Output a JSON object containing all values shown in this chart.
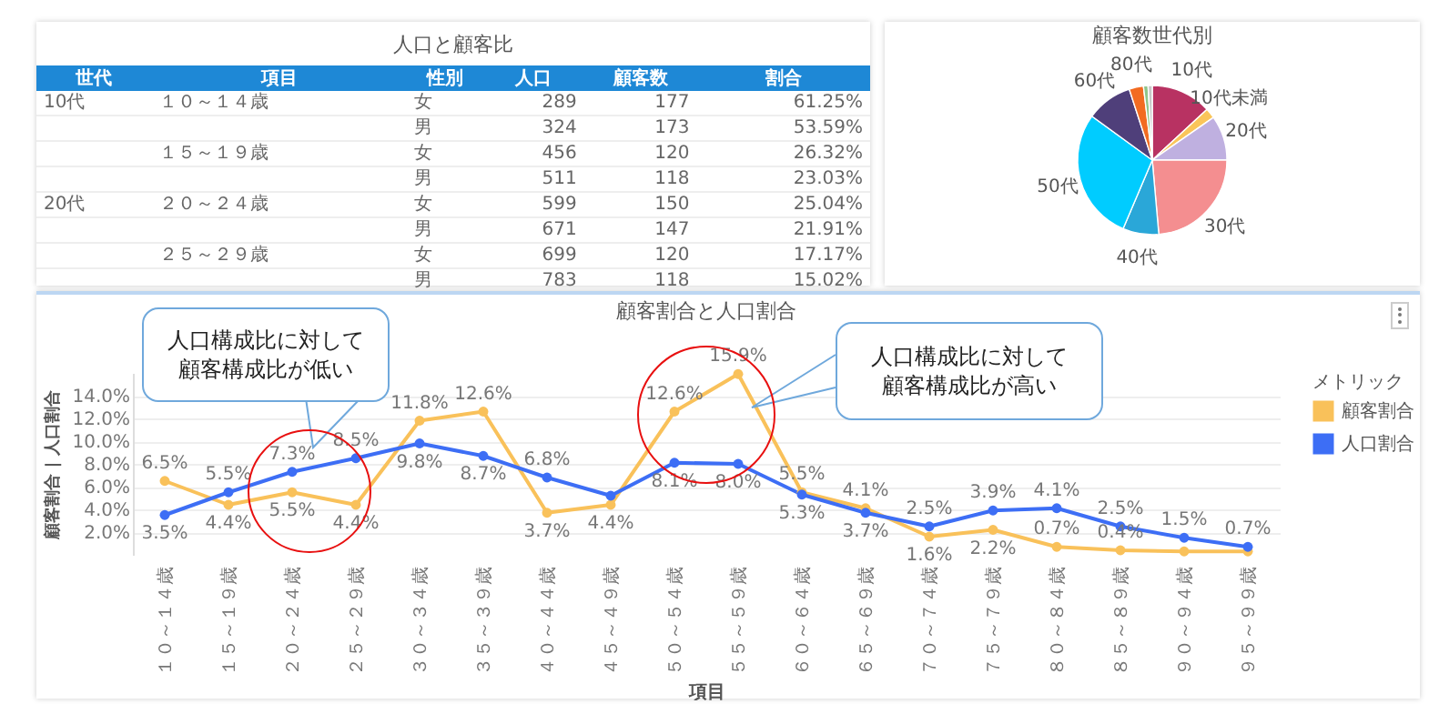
{
  "chart_data": [
    {
      "type": "other",
      "title": "人口と顧客比",
      "categories": [
        "世代",
        "項目",
        "性別",
        "人口",
        "顧客数",
        "割合"
      ],
      "cell_labels": [
        [
          "10代",
          "１０～１４歳",
          "女",
          "289",
          "177",
          "61.25%"
        ],
        [
          null,
          null,
          "男",
          "324",
          "173",
          "53.59%"
        ],
        [
          null,
          "１５～１９歳",
          "女",
          "456",
          "120",
          "26.32%"
        ],
        [
          null,
          null,
          "男",
          "511",
          "118",
          "23.03%"
        ],
        [
          "20代",
          "２０～２４歳",
          "女",
          "599",
          "150",
          "25.04%"
        ],
        [
          null,
          null,
          "男",
          "671",
          "147",
          "21.91%"
        ],
        [
          null,
          "２５～２９歳",
          "女",
          "699",
          "120",
          "17.17%"
        ],
        [
          null,
          null,
          "男",
          "783",
          "118",
          "15.02%"
        ]
      ]
    },
    {
      "type": "pie",
      "title": "顧客数世代別",
      "categories": [
        "10代",
        "10代未満",
        "20代",
        "30代",
        "40代",
        "50代",
        "60代",
        "80代",
        null,
        null
      ],
      "values": [
        13.1,
        2.2,
        9.7,
        23.6,
        7.8,
        28.6,
        10.0,
        3.1,
        1.0,
        0.9
      ],
      "colors": [
        "#b83262",
        "#fac55a",
        "#bfb0e0",
        "#f48e90",
        "#2aa7d8",
        "#00ccff",
        "#4f3f7a",
        "#f26b21",
        "#8fc58a",
        "#c8c8c8"
      ]
    },
    {
      "type": "line",
      "title": "顧客割合と人口割合",
      "xlabel": "項目",
      "ylabel": "顧客割合 | 人口割合",
      "legend_title": "メトリック",
      "categories": [
        "１０～１４歳",
        "１５～１９歳",
        "２０～２４歳",
        "２５～２９歳",
        "３０～３４歳",
        "３５～３９歳",
        "４０～４４歳",
        "４５～４９歳",
        "５０～５４歳",
        "５５～５９歳",
        "６０～６４歳",
        "６５～６９歳",
        "７０～７４歳",
        "７５～７９歳",
        "８０～８４歳",
        "８５～８９歳",
        "９０～９４歳",
        "９５～９９歳"
      ],
      "series": [
        {
          "name": "顧客割合",
          "color": "#f9c15a",
          "values": [
            6.5,
            4.4,
            5.5,
            4.4,
            11.8,
            12.6,
            3.7,
            4.4,
            12.6,
            15.9,
            5.5,
            4.1,
            1.6,
            2.2,
            0.7,
            0.4,
            0.3,
            0.3
          ],
          "value_labels": [
            "6.5%",
            "4.4%",
            "5.5%",
            "4.4%",
            "11.8%",
            "12.6%",
            "3.7%",
            "4.4%",
            "12.6%",
            "15.9%",
            "5.5%",
            "4.1%",
            "1.6%",
            "2.2%",
            "0.7%",
            "0.4%",
            null,
            null
          ]
        },
        {
          "name": "人口割合",
          "color": "#3d6ef5",
          "values": [
            3.5,
            5.5,
            7.3,
            8.5,
            9.8,
            8.7,
            6.8,
            5.2,
            8.1,
            8.0,
            5.3,
            3.7,
            2.5,
            3.9,
            4.1,
            2.5,
            1.5,
            0.7
          ],
          "value_labels": [
            "3.5%",
            "5.5%",
            "7.3%",
            "8.5%",
            "9.8%",
            "8.7%",
            "6.8%",
            null,
            "8.1%",
            "8.0%",
            "5.3%",
            "3.7%",
            "2.5%",
            "3.9%",
            "4.1%",
            "2.5%",
            "1.5%",
            "0.7%"
          ]
        }
      ],
      "ylim": [
        0,
        16
      ],
      "yticks": [
        {
          "value": 2,
          "label": "2.0%"
        },
        {
          "value": 4,
          "label": "4.0%"
        },
        {
          "value": 6,
          "label": "6.0%"
        },
        {
          "value": 8,
          "label": "8.0%"
        },
        {
          "value": 10,
          "label": "10.0%"
        },
        {
          "value": 12,
          "label": "12.0%"
        },
        {
          "value": 14,
          "label": "14.0%"
        }
      ],
      "grid": "y",
      "legend": "right",
      "marker": "circle",
      "line_style": "solid",
      "annotations": [
        "人口構成比に対して顧客構成比が低い",
        "人口構成比に対して顧客構成比が高い"
      ]
    }
  ]
}
